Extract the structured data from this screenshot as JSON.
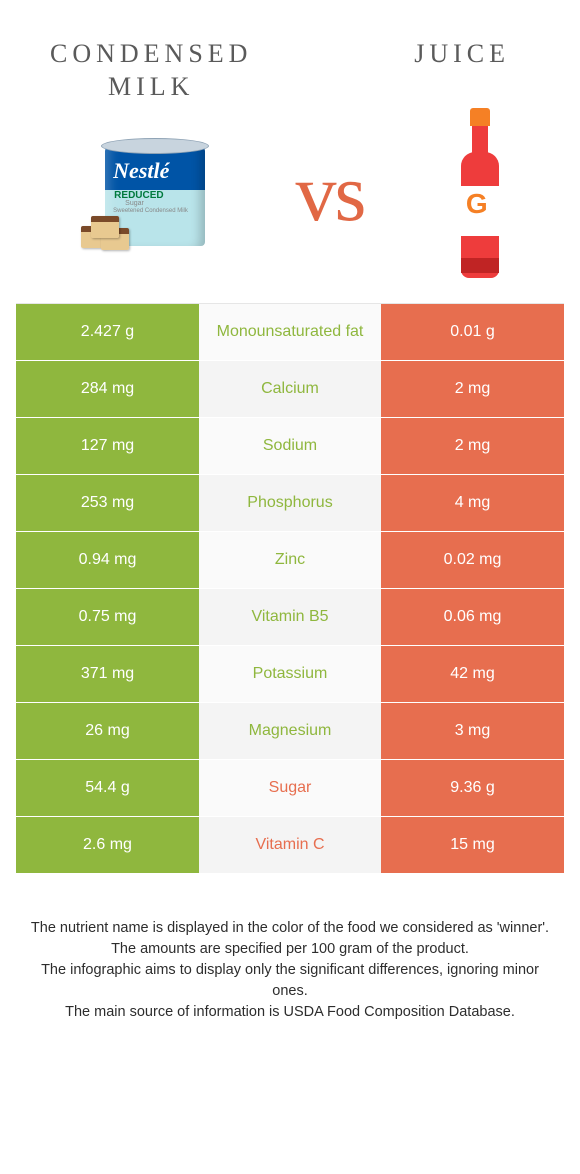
{
  "colors": {
    "left": "#8fb73e",
    "right": "#e76e4f"
  },
  "header": {
    "left_title": "CONDENSED\nMILK",
    "right_title": "JUICE",
    "vs": "vs"
  },
  "rows": [
    {
      "left": "2.427 g",
      "label": "Monounsaturated fat",
      "right": "0.01 g",
      "winner": "left"
    },
    {
      "left": "284 mg",
      "label": "Calcium",
      "right": "2 mg",
      "winner": "left"
    },
    {
      "left": "127 mg",
      "label": "Sodium",
      "right": "2 mg",
      "winner": "left"
    },
    {
      "left": "253 mg",
      "label": "Phosphorus",
      "right": "4 mg",
      "winner": "left"
    },
    {
      "left": "0.94 mg",
      "label": "Zinc",
      "right": "0.02 mg",
      "winner": "left"
    },
    {
      "left": "0.75 mg",
      "label": "Vitamin B5",
      "right": "0.06 mg",
      "winner": "left"
    },
    {
      "left": "371 mg",
      "label": "Potassium",
      "right": "42 mg",
      "winner": "left"
    },
    {
      "left": "26 mg",
      "label": "Magnesium",
      "right": "3 mg",
      "winner": "left"
    },
    {
      "left": "54.4 g",
      "label": "Sugar",
      "right": "9.36 g",
      "winner": "right"
    },
    {
      "left": "2.6 mg",
      "label": "Vitamin C",
      "right": "15 mg",
      "winner": "right"
    }
  ],
  "footer": {
    "l1": "The nutrient name is displayed in the color of the food we considered as 'winner'.",
    "l2": "The amounts are specified per 100 gram of the product.",
    "l3": "The infographic aims to display only the significant differences, ignoring minor ones.",
    "l4": "The main source of information is USDA Food Composition Database."
  }
}
